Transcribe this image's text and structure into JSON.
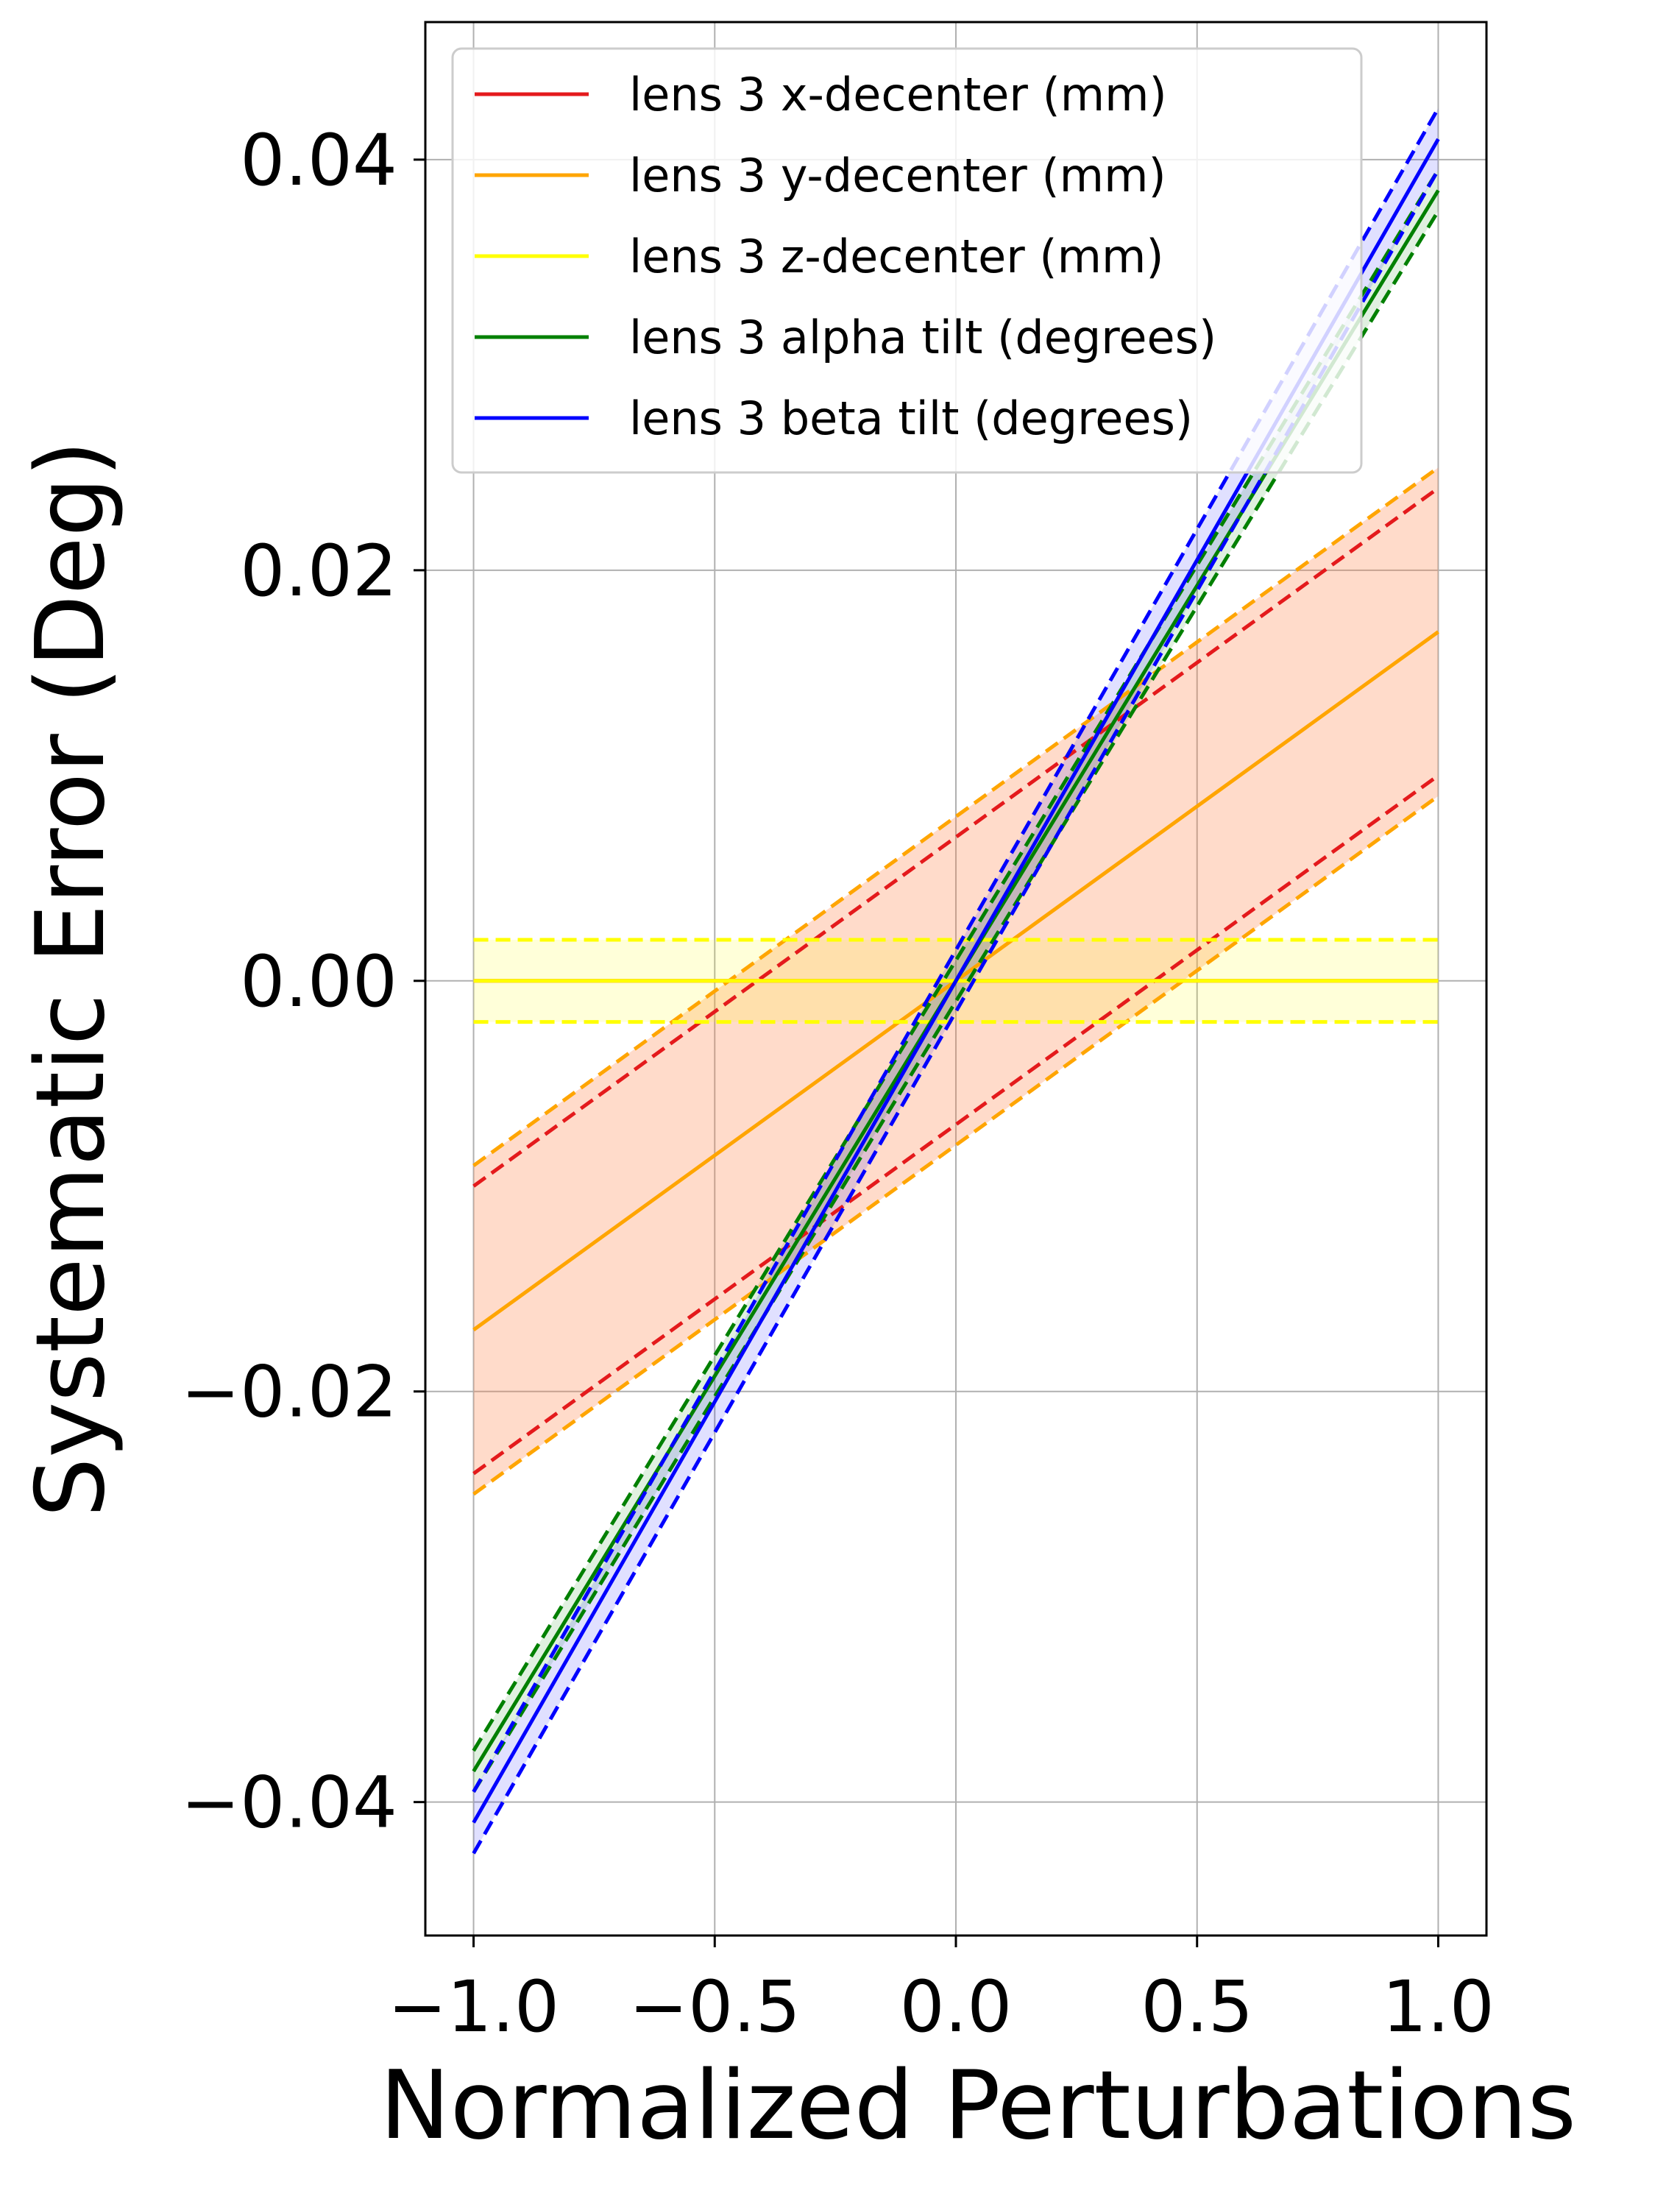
{
  "chart_data": {
    "type": "line",
    "title": "",
    "xlabel": "Normalized Perturbations",
    "ylabel": "Systematic Error (Deg)",
    "xlim": [
      -1.1,
      1.1
    ],
    "ylim": [
      -0.0465,
      0.0467
    ],
    "xticks": [
      -1.0,
      -0.5,
      0.0,
      0.5,
      1.0
    ],
    "xtick_labels": [
      "−1.0",
      "−0.5",
      "0.0",
      "0.5",
      "1.0"
    ],
    "yticks": [
      -0.04,
      -0.02,
      0.0,
      0.02,
      0.04
    ],
    "ytick_labels": [
      "−0.04",
      "−0.02",
      "0.00",
      "0.02",
      "0.04"
    ],
    "grid": true,
    "legend_position": "top",
    "series": [
      {
        "name": "lens 3 x-decenter (mm)",
        "color": "#e41a1c",
        "x": [
          -1.0,
          1.0
        ],
        "mean": [
          0,
          0
        ],
        "lower": [
          -0.024,
          0.01
        ],
        "upper": [
          -0.01,
          0.024
        ],
        "band_fill": "",
        "band_opacity": 0
      },
      {
        "name": "lens 3 y-decenter (mm)",
        "color": "#ffa500",
        "x": [
          -1.0,
          1.0
        ],
        "mean": [
          -0.017,
          0.017
        ],
        "lower": [
          -0.025,
          0.009
        ],
        "upper": [
          -0.009,
          0.025
        ],
        "band_fill": "#ff7f3f",
        "band_opacity": 0.28
      },
      {
        "name": "lens 3 z-decenter (mm)",
        "color": "#ffff00",
        "x": [
          -1.0,
          1.0
        ],
        "mean": [
          0.0,
          0.0
        ],
        "lower": [
          -0.002,
          -0.002
        ],
        "upper": [
          0.002,
          0.002
        ],
        "band_fill": "#ffff00",
        "band_opacity": 0.15
      },
      {
        "name": "lens 3 alpha tilt (degrees)",
        "color": "#008000",
        "x": [
          -1.0,
          1.0
        ],
        "mean": [
          -0.0385,
          0.0385
        ],
        "lower": [
          -0.0395,
          0.0375
        ],
        "upper": [
          -0.0375,
          0.0395
        ],
        "band_fill": "#008000",
        "band_opacity": 0.12
      },
      {
        "name": "lens 3 beta tilt (degrees)",
        "color": "#0000ff",
        "x": [
          -1.0,
          1.0
        ],
        "mean": [
          -0.041,
          0.041
        ],
        "lower": [
          -0.0425,
          0.0395
        ],
        "upper": [
          -0.0395,
          0.0425
        ],
        "band_fill": "#0000ff",
        "band_opacity": 0.12
      }
    ]
  }
}
